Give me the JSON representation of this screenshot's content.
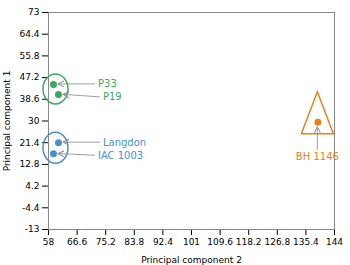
{
  "chart_data": {
    "type": "scatter",
    "xlabel": "Principal component 2",
    "ylabel": "Principal component 1",
    "xlim": [
      58,
      144
    ],
    "ylim": [
      -13,
      73
    ],
    "xticks": [
      58,
      66.6,
      75.2,
      83.8,
      92.4,
      101,
      109.6,
      118.2,
      126.8,
      135.4,
      144
    ],
    "yticks": [
      -13,
      -4.4,
      4.2,
      12.8,
      21.4,
      30,
      38.6,
      47.2,
      55.8,
      64.4,
      73
    ],
    "x": [
      59.5,
      61,
      61,
      59.5,
      139
    ],
    "values": [
      44.5,
      40.5,
      21.4,
      17,
      29.5
    ],
    "colors": [
      "#3aaa5c",
      "#3aaa5c",
      "#4a90d0",
      "#4a90d0",
      "#e8821a"
    ],
    "annotations": [
      "P33",
      "P19",
      "Langdon",
      "IAC 1003",
      "BH 1146"
    ],
    "grid": false
  }
}
